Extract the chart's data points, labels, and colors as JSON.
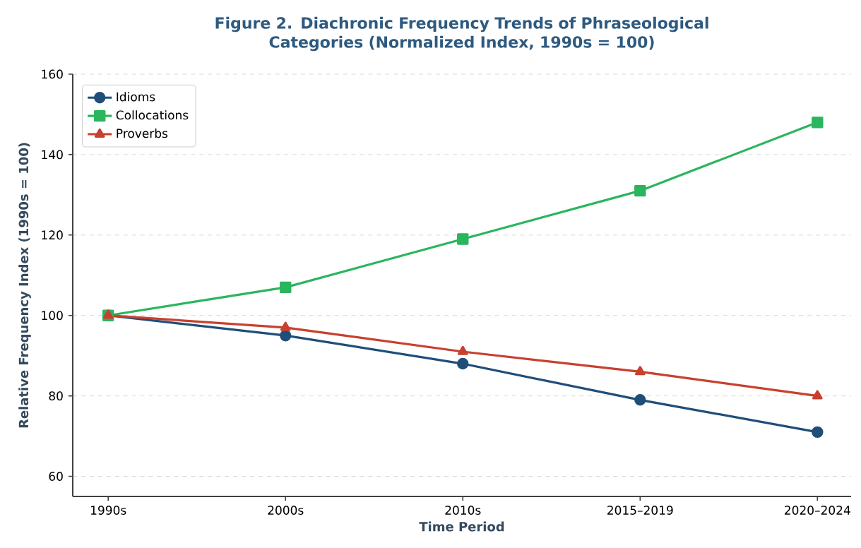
{
  "chart_data": {
    "type": "line",
    "title": "Figure 2. Diachronic Frequency Trends of Phraseological Categories (Normalized Index, 1990s = 100)",
    "xlabel": "Time Period",
    "ylabel": "Relative Frequency Index (1990s = 100)",
    "categories": [
      "1990s",
      "2000s",
      "2010s",
      "2015–2019",
      "2020–2024"
    ],
    "series": [
      {
        "name": "Idioms",
        "color": "#1f4e79",
        "marker": "circle",
        "values": [
          100,
          95,
          88,
          79,
          71
        ]
      },
      {
        "name": "Collocations",
        "color": "#2ab55e",
        "marker": "square",
        "values": [
          100,
          107,
          119,
          131,
          148
        ]
      },
      {
        "name": "Proverbs",
        "color": "#c8402f",
        "marker": "triangle",
        "values": [
          100,
          97,
          91,
          86,
          80
        ]
      }
    ],
    "ylim": [
      55,
      160
    ],
    "yticks": [
      60,
      80,
      100,
      120,
      140,
      160
    ],
    "grid": "y",
    "legend": "top left",
    "line_style": "solid"
  }
}
